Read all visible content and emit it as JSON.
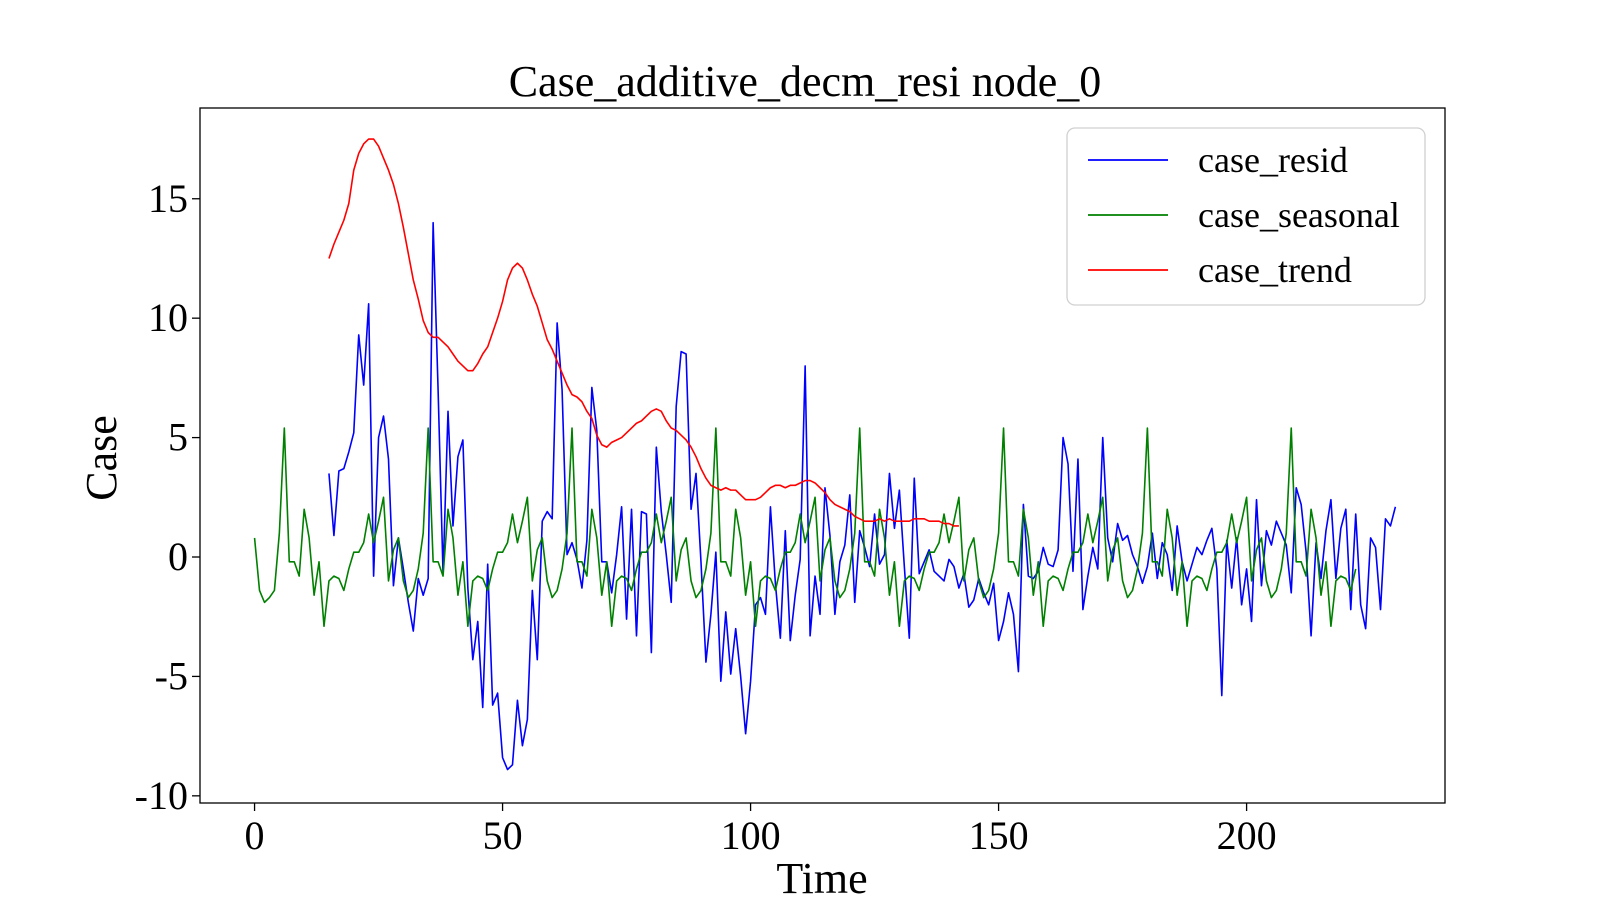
{
  "chart_data": {
    "type": "line",
    "title": "Case_additive_decm_resi  node_0",
    "xlabel": "Time",
    "ylabel": "Case",
    "xlim": [
      -11,
      240
    ],
    "ylim": [
      -10.3,
      18.8
    ],
    "xticks": [
      0,
      50,
      100,
      150,
      200
    ],
    "xtick_labels": [
      "0",
      "50",
      "100",
      "150",
      "200"
    ],
    "yticks": [
      -10,
      -5,
      0,
      5,
      10,
      15
    ],
    "ytick_labels": [
      "-10",
      "-5",
      "0",
      "5",
      "10",
      "15"
    ],
    "grid": false,
    "legend_position": "top-right",
    "series": [
      {
        "name": "case_resid",
        "color": "#0000ff",
        "x_start": 15,
        "values": [
          3.5,
          0.9,
          3.6,
          3.7,
          4.4,
          5.2,
          9.3,
          7.2,
          10.6,
          -0.8,
          5.0,
          5.9,
          4.1,
          -1.2,
          0.8,
          -0.5,
          -1.9,
          -3.1,
          -0.9,
          -1.6,
          -0.9,
          14.0,
          7.0,
          -0.7,
          6.1,
          1.3,
          4.2,
          4.9,
          -1.3,
          -4.3,
          -2.7,
          -6.3,
          -0.3,
          -6.2,
          -5.7,
          -8.4,
          -8.9,
          -8.7,
          -6.0,
          -7.9,
          -6.8,
          -1.4,
          -4.3,
          1.5,
          1.9,
          1.6,
          9.8,
          7.0,
          0.1,
          0.6,
          -0.1,
          -1.3,
          0.7,
          7.1,
          5.3,
          -0.2,
          -0.2,
          -1.5,
          0.1,
          2.1,
          -2.6,
          2.0,
          -3.3,
          1.9,
          1.8,
          -4.0,
          4.6,
          1.9,
          0.1,
          -1.9,
          6.3,
          8.6,
          8.5,
          2.0,
          3.5,
          -0.2,
          -4.4,
          -2.4,
          0.2,
          -5.2,
          -2.3,
          -4.9,
          -3.0,
          -5.0,
          -7.4,
          -5.2,
          -2.0,
          -1.7,
          -2.4,
          2.1,
          -1.1,
          -3.4,
          1.1,
          -3.5,
          -1.6,
          -0.1,
          8.0,
          -3.3,
          -0.8,
          -2.4,
          2.9,
          0.9,
          -2.4,
          -0.2,
          0.5,
          2.6,
          -1.9,
          1.1,
          0.4,
          -0.4,
          1.8,
          -0.3,
          0.1,
          3.5,
          1.2,
          2.8,
          -0.4,
          -3.4,
          3.3,
          -0.7,
          -0.2,
          0.3,
          -0.6,
          -0.8,
          -1.0,
          -0.1,
          -0.4,
          -1.3,
          -0.7,
          -2.1,
          -1.8,
          -0.9,
          -1.5,
          -2.0,
          -1.1,
          -3.5,
          -2.7,
          -1.5,
          -2.4,
          -4.8,
          2.2,
          -0.8,
          -0.9,
          -0.6,
          0.4,
          -0.3,
          -0.4,
          0.3,
          5.0,
          3.9,
          -0.6,
          4.1,
          -2.2,
          -0.8,
          0.4,
          -0.5,
          5.0,
          0.8,
          -0.2,
          1.4,
          0.7,
          0.9,
          0.1,
          -0.4,
          -1.1,
          -0.4,
          1.0,
          -0.9,
          0.6,
          0.1,
          -1.4,
          1.3,
          -0.2,
          -1.0,
          -0.3,
          0.4,
          0.1,
          0.7,
          1.2,
          -0.5,
          -5.8,
          0.7,
          -1.3,
          0.8,
          -2.0,
          -0.5,
          -2.7,
          2.4,
          -1.2,
          1.1,
          0.5,
          1.5,
          1.0,
          0.5,
          -1.5,
          2.9,
          2.2,
          0.2,
          -3.3,
          0.6,
          -0.9,
          1.1,
          2.4,
          -0.9,
          1.2,
          2.0,
          -2.2,
          1.8,
          -2.0,
          -3.0,
          0.8,
          0.4,
          -2.2,
          1.6,
          1.3,
          2.1
        ]
      },
      {
        "name": "case_seasonal",
        "color": "#008000",
        "x_start": 0,
        "values": [
          0.8,
          -1.4,
          -1.9,
          -1.7,
          -1.4,
          1.0,
          5.4,
          -0.2,
          -0.2,
          -0.8,
          2.0,
          0.8,
          -1.6,
          -0.2,
          -2.9,
          -1.0,
          -0.8,
          -0.9,
          -1.4,
          -0.5,
          0.2,
          0.2,
          0.6,
          1.8,
          0.6,
          1.5,
          2.5,
          -1.0,
          0.3,
          0.8,
          -1.0,
          -1.7,
          -1.4,
          -0.5,
          1.0,
          5.4,
          -0.2,
          -0.2,
          -0.8,
          2.0,
          0.8,
          -1.6,
          -0.2,
          -2.9,
          -1.0,
          -0.8,
          -0.9,
          -1.4,
          -0.5,
          0.2,
          0.2,
          0.6,
          1.8,
          0.6,
          1.5,
          2.5,
          -1.0,
          0.3,
          0.8,
          -1.0,
          -1.7,
          -1.4,
          -0.5,
          1.0,
          5.4,
          -0.2,
          -0.2,
          -0.8,
          2.0,
          0.8,
          -1.6,
          -0.2,
          -2.9,
          -1.0,
          -0.8,
          -0.9,
          -1.4,
          -0.5,
          0.2,
          0.2,
          0.6,
          1.8,
          0.6,
          1.5,
          2.5,
          -1.0,
          0.3,
          0.8,
          -1.0,
          -1.7,
          -1.4,
          -0.5,
          1.0,
          5.4,
          -0.2,
          -0.2,
          -0.8,
          2.0,
          0.8,
          -1.6,
          -0.2,
          -2.9,
          -1.0,
          -0.8,
          -0.9,
          -1.4,
          -0.5,
          0.2,
          0.2,
          0.6,
          1.8,
          0.6,
          1.5,
          2.5,
          -1.0,
          0.3,
          0.8,
          -1.0,
          -1.7,
          -1.4,
          -0.5,
          1.0,
          5.4,
          -0.2,
          -0.2,
          -0.8,
          2.0,
          0.8,
          -1.6,
          -0.2,
          -2.9,
          -1.0,
          -0.8,
          -0.9,
          -1.4,
          -0.5,
          0.2,
          0.2,
          0.6,
          1.8,
          0.6,
          1.5,
          2.5,
          -1.0,
          0.3,
          0.8,
          -1.0,
          -1.7,
          -1.4,
          -0.5,
          1.0,
          5.4,
          -0.2,
          -0.2,
          -0.8,
          2.0,
          0.8,
          -1.6,
          -0.2,
          -2.9,
          -1.0,
          -0.8,
          -0.9,
          -1.4,
          -0.5,
          0.2,
          0.2,
          0.6,
          1.8,
          0.6,
          1.5,
          2.5,
          -1.0,
          0.3,
          0.8,
          -1.0,
          -1.7,
          -1.4,
          -0.5,
          1.0,
          5.4,
          -0.2,
          -0.2,
          -0.8,
          2.0,
          0.8,
          -1.6,
          -0.2,
          -2.9,
          -1.0,
          -0.8,
          -0.9,
          -1.4,
          -0.5,
          0.2,
          0.2,
          0.6,
          1.8,
          0.6,
          1.5,
          2.5,
          -1.0,
          0.3,
          0.8,
          -1.0,
          -1.7,
          -1.4,
          -0.5,
          1.0,
          5.4,
          -0.2,
          -0.2,
          -0.8,
          2.0,
          0.8,
          -1.6,
          -0.2,
          -2.9,
          -1.0,
          -0.8,
          -0.9,
          -1.4,
          -0.5
        ]
      },
      {
        "name": "case_trend",
        "color": "#ff0000",
        "x_start": 15,
        "values": [
          12.5,
          13.1,
          13.6,
          14.1,
          14.8,
          16.2,
          16.9,
          17.3,
          17.5,
          17.5,
          17.2,
          16.7,
          16.2,
          15.6,
          14.8,
          13.8,
          12.7,
          11.6,
          10.8,
          9.9,
          9.4,
          9.2,
          9.2,
          9.0,
          8.8,
          8.5,
          8.2,
          8.0,
          7.8,
          7.8,
          8.1,
          8.5,
          8.8,
          9.4,
          10.0,
          10.7,
          11.6,
          12.1,
          12.3,
          12.1,
          11.6,
          11.0,
          10.5,
          9.8,
          9.1,
          8.7,
          8.2,
          7.7,
          7.2,
          6.8,
          6.7,
          6.5,
          6.1,
          5.8,
          5.1,
          4.7,
          4.6,
          4.8,
          4.9,
          5.0,
          5.2,
          5.4,
          5.6,
          5.7,
          5.9,
          6.1,
          6.2,
          6.1,
          5.7,
          5.4,
          5.3,
          5.1,
          4.9,
          4.6,
          4.2,
          3.7,
          3.3,
          3.0,
          2.9,
          2.8,
          2.9,
          2.8,
          2.8,
          2.6,
          2.4,
          2.4,
          2.4,
          2.5,
          2.7,
          2.9,
          3.0,
          3.0,
          2.9,
          3.0,
          3.0,
          3.1,
          3.2,
          3.2,
          3.1,
          2.9,
          2.7,
          2.4,
          2.2,
          2.1,
          2.0,
          1.9,
          1.7,
          1.6,
          1.5,
          1.5,
          1.5,
          1.6,
          1.5,
          1.6,
          1.5,
          1.5,
          1.5,
          1.5,
          1.6,
          1.6,
          1.6,
          1.5,
          1.5,
          1.5,
          1.4,
          1.4,
          1.3,
          1.3
        ]
      }
    ]
  }
}
